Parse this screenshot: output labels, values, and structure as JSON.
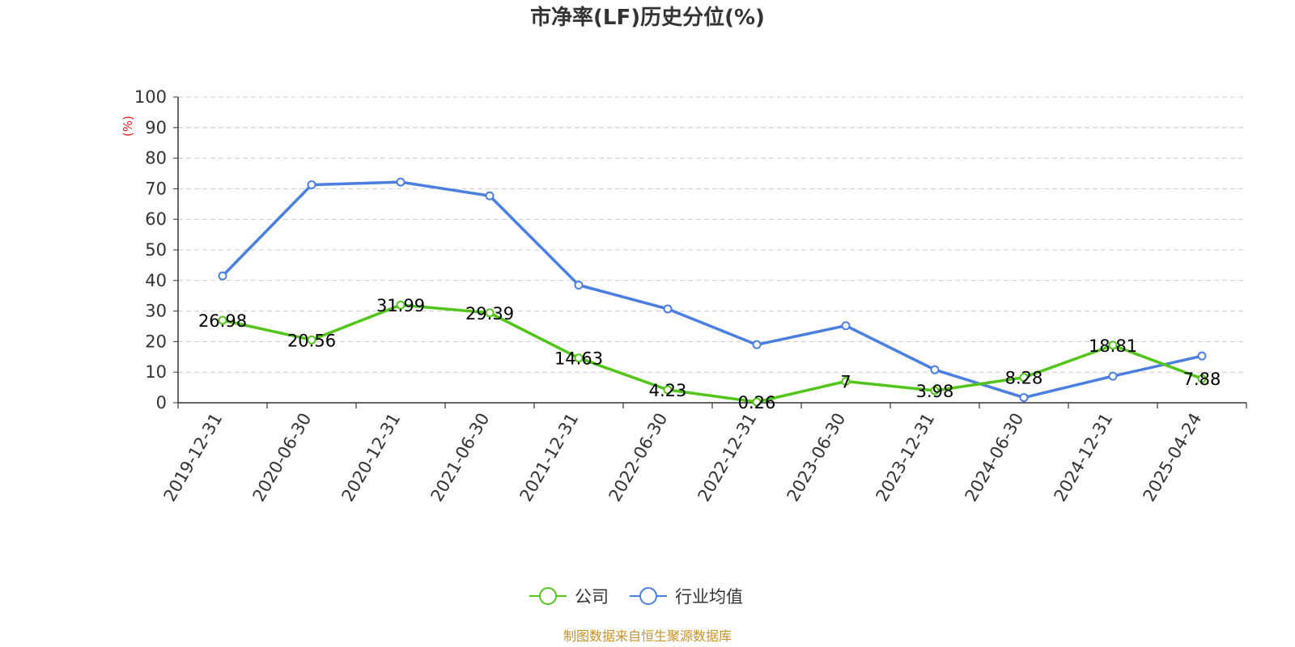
{
  "chart_data": {
    "type": "line",
    "title": "市净率(LF)历史分位(%)",
    "ylabel": "(%)",
    "ylim": [
      0,
      100
    ],
    "yticks": [
      0,
      10,
      20,
      30,
      40,
      50,
      60,
      70,
      80,
      90,
      100
    ],
    "grid": true,
    "legend_position": "bottom",
    "categories": [
      "2019-12-31",
      "2020-06-30",
      "2020-12-31",
      "2021-06-30",
      "2021-12-31",
      "2022-06-30",
      "2022-12-31",
      "2023-06-30",
      "2023-12-31",
      "2024-06-30",
      "2024-12-31",
      "2025-04-24"
    ],
    "series": [
      {
        "name": "公司",
        "color": "#52c41a",
        "values": [
          26.98,
          20.56,
          31.99,
          29.39,
          14.63,
          4.23,
          0.26,
          7,
          3.98,
          8.28,
          18.81,
          7.88
        ],
        "value_labels": [
          "26.98",
          "20.56",
          "31.99",
          "29.39",
          "14.63",
          "4.23",
          "0.26",
          "7",
          "3.98",
          "8.28",
          "18.81",
          "7.88"
        ]
      },
      {
        "name": "行业均值",
        "color": "#4a7fe0",
        "values": [
          41.5,
          71.3,
          72.2,
          67.7,
          38.5,
          30.7,
          19,
          25.2,
          10.8,
          1.7,
          8.7,
          15.3
        ]
      }
    ]
  },
  "source_text": "制图数据来自恒生聚源数据库",
  "source_color": "#c8922a",
  "unit_color": "#e02020"
}
